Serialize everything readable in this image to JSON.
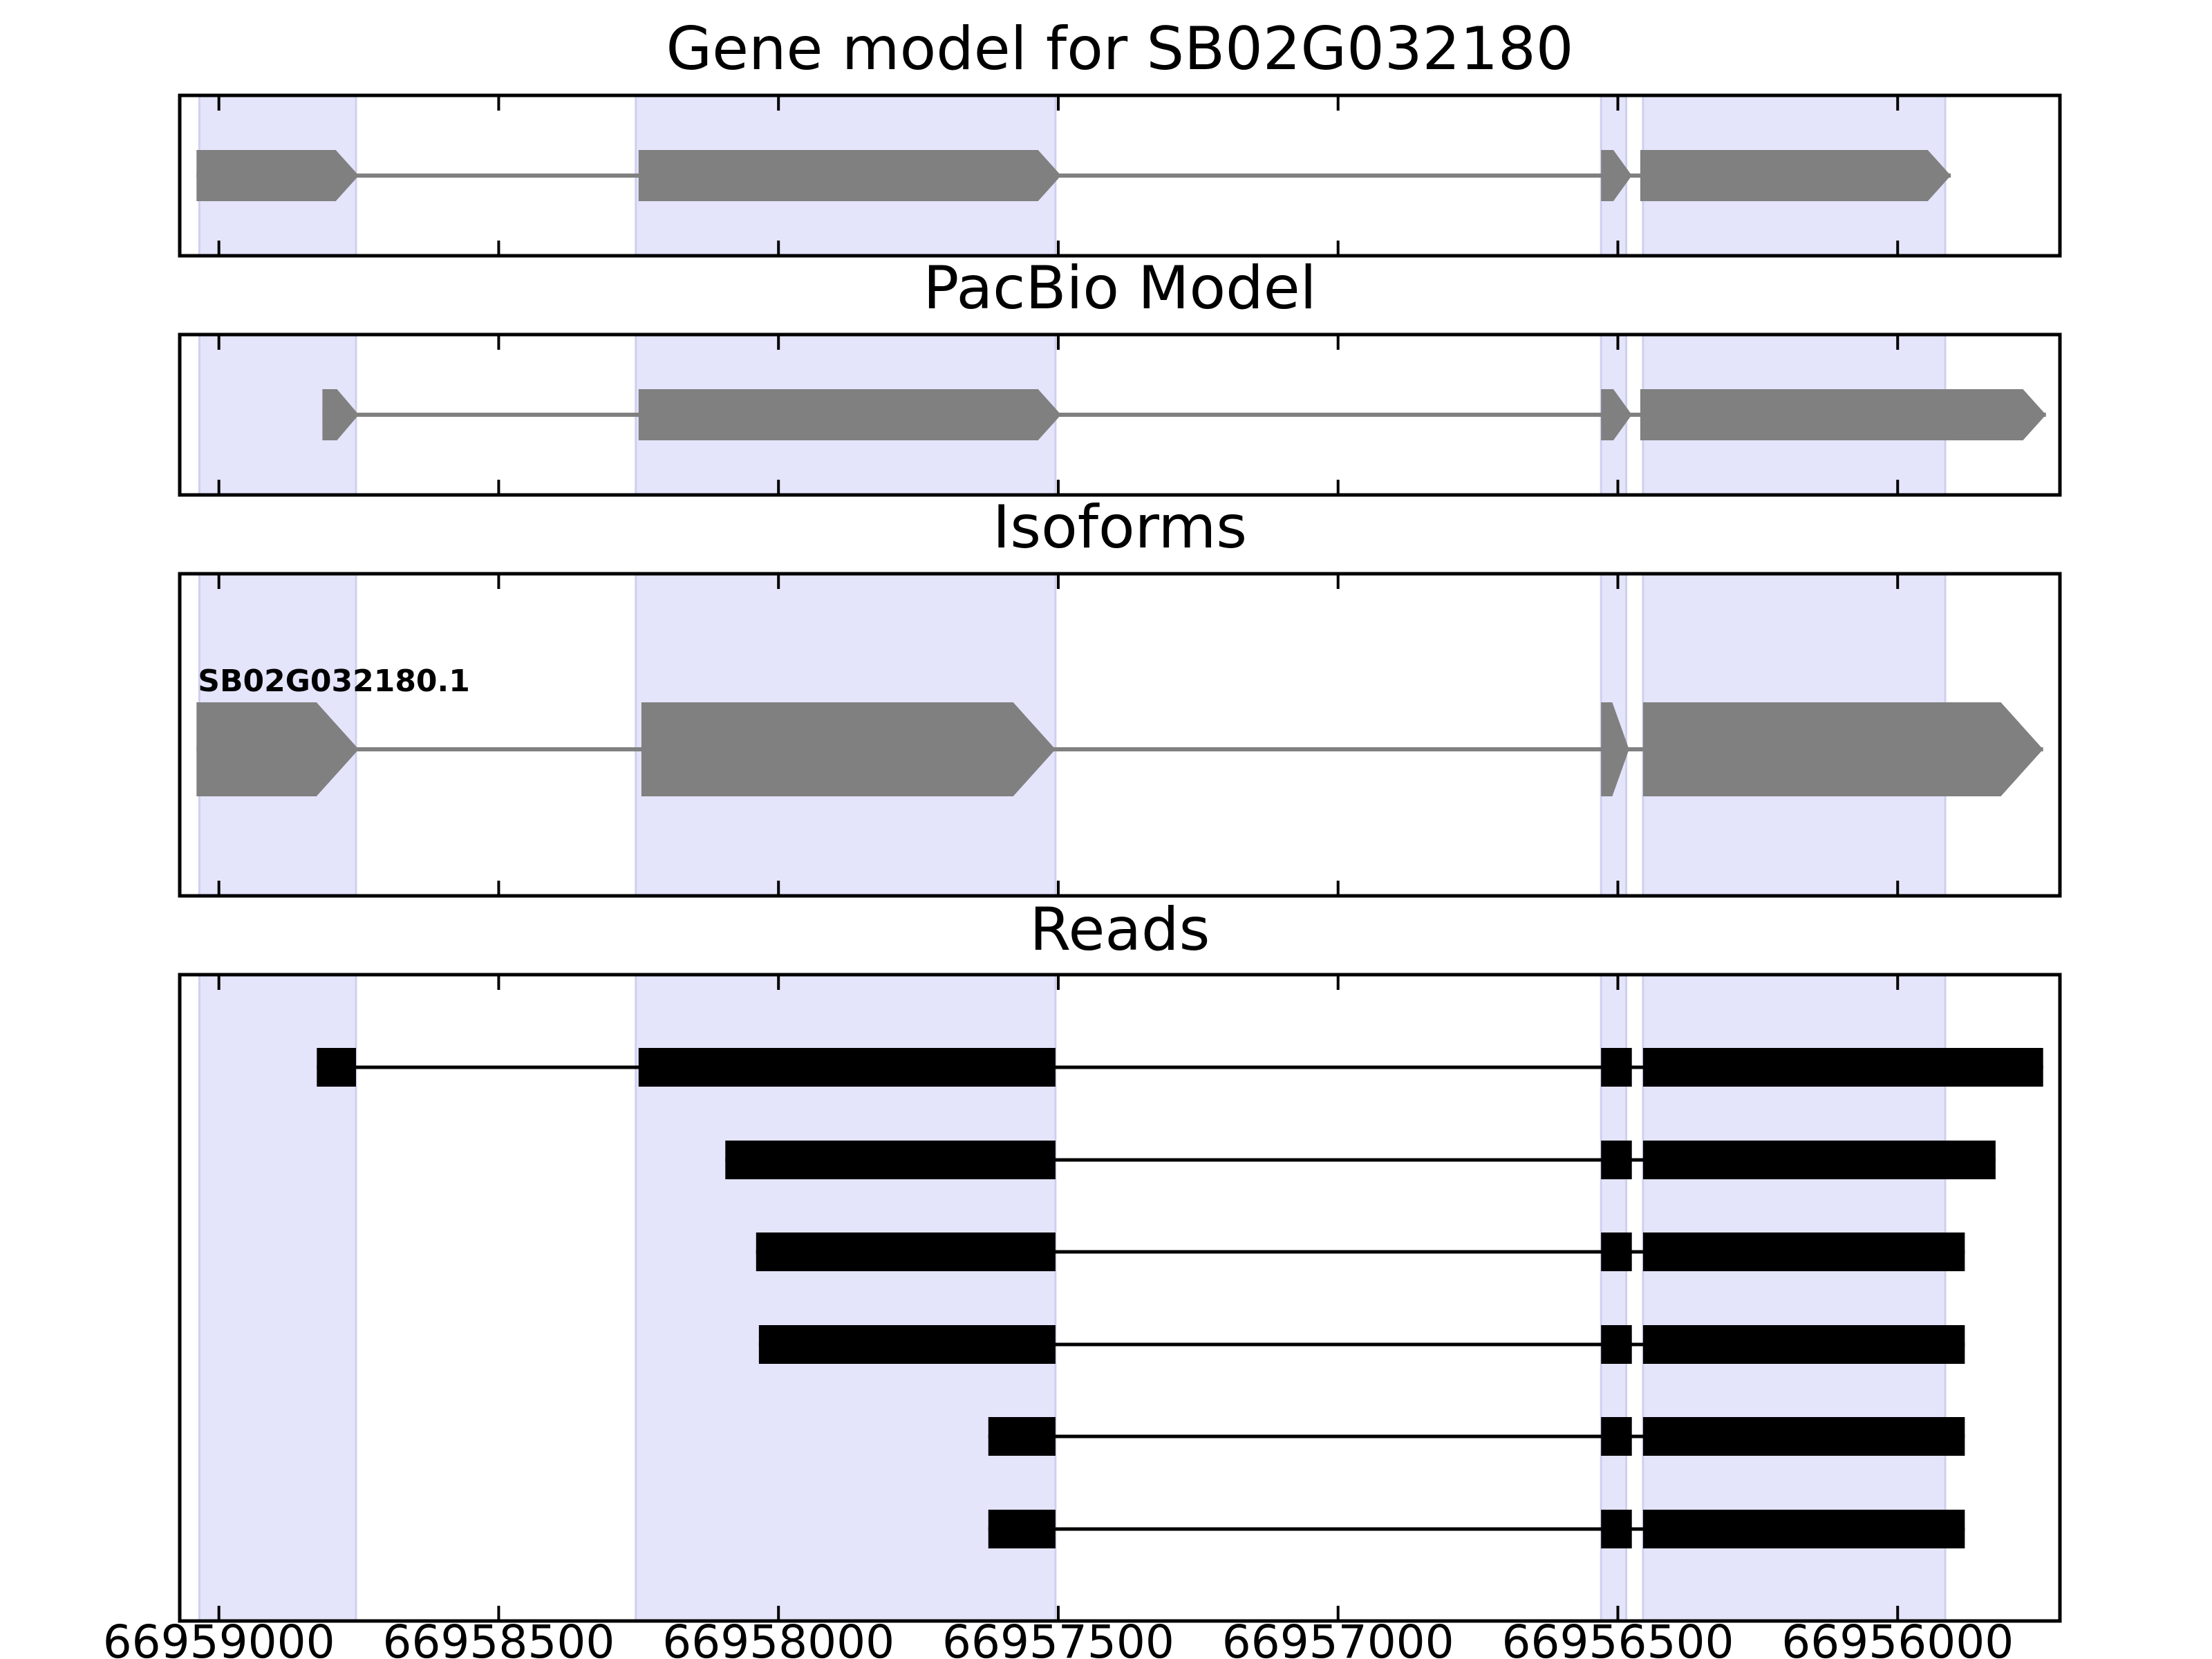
{
  "chart_data": {
    "type": "gene-structure",
    "x_axis": {
      "reversed": true,
      "xlim": [
        66959070,
        66955710
      ],
      "ticks": [
        66959000,
        66958500,
        66958000,
        66957500,
        66957000,
        66956500,
        66956000
      ],
      "tick_labels": [
        "66959000",
        "66958500",
        "66958000",
        "66957500",
        "66957000",
        "66956500",
        "66956000"
      ]
    },
    "highlight_regions": [
      [
        66959035,
        66958755
      ],
      [
        66958255,
        66957505
      ],
      [
        66956530,
        66956485
      ],
      [
        66956455,
        66955915
      ]
    ],
    "colors": {
      "model": "#808080",
      "read": "#000000",
      "highlight": "#e4e4fb",
      "highlight_edge": "#cfcfef"
    },
    "panels": [
      {
        "title": "Gene model for SB02G032180",
        "tracks": [
          {
            "exons": [
              [
                66959040,
                66958750
              ],
              [
                66958250,
                66957495
              ],
              [
                66956530,
                66956475
              ],
              [
                66956460,
                66955905
              ]
            ]
          }
        ]
      },
      {
        "title": "PacBio Model",
        "tracks": [
          {
            "exons": [
              [
                66958815,
                66958750
              ],
              [
                66958250,
                66957495
              ],
              [
                66956530,
                66956475
              ],
              [
                66956460,
                66955735
              ]
            ]
          }
        ]
      },
      {
        "title": "Isoforms",
        "tracks": [
          {
            "label": "SB02G032180.1",
            "exons": [
              [
                66959040,
                66958750
              ],
              [
                66958245,
                66957505
              ],
              [
                66956530,
                66956480
              ],
              [
                66956455,
                66955740
              ]
            ]
          }
        ]
      },
      {
        "title": "Reads",
        "tracks": [
          {
            "exons": [
              [
                66958825,
                66958755
              ],
              [
                66958250,
                66957505
              ],
              [
                66956530,
                66956475
              ],
              [
                66956455,
                66955740
              ]
            ]
          },
          {
            "exons": [
              [
                66958095,
                66957505
              ],
              [
                66956530,
                66956475
              ],
              [
                66956455,
                66955825
              ]
            ]
          },
          {
            "exons": [
              [
                66958040,
                66957505
              ],
              [
                66956530,
                66956475
              ],
              [
                66956455,
                66955880
              ]
            ]
          },
          {
            "exons": [
              [
                66958035,
                66957505
              ],
              [
                66956530,
                66956475
              ],
              [
                66956455,
                66955880
              ]
            ]
          },
          {
            "exons": [
              [
                66957625,
                66957505
              ],
              [
                66956530,
                66956475
              ],
              [
                66956455,
                66955880
              ]
            ]
          },
          {
            "exons": [
              [
                66957625,
                66957505
              ],
              [
                66956530,
                66956475
              ],
              [
                66956455,
                66955880
              ]
            ]
          }
        ]
      }
    ]
  }
}
